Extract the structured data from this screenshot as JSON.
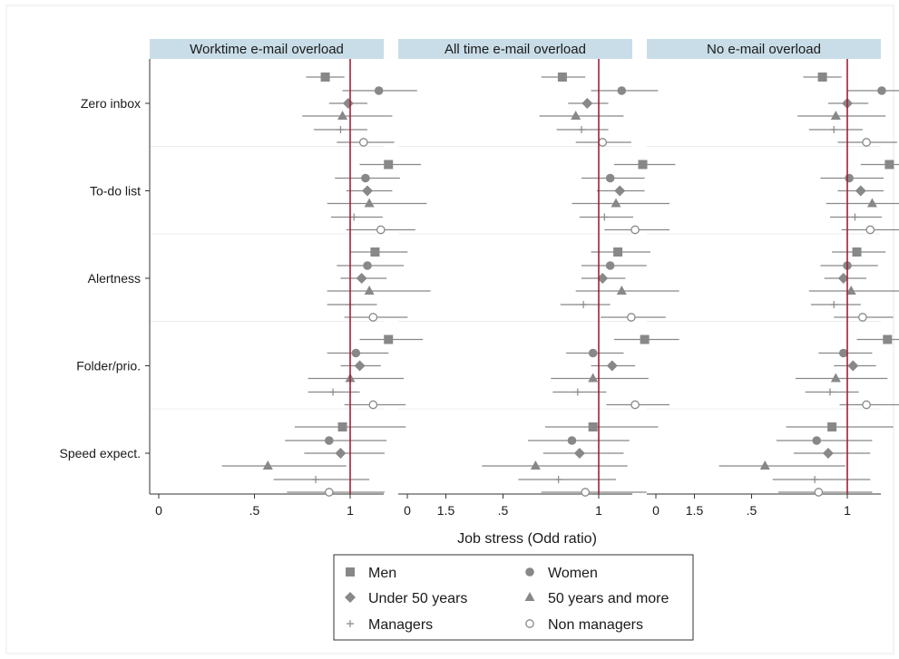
{
  "chart_data": {
    "type": "scatter",
    "subtype": "forest-plot",
    "xlabel": "Job stress  (Odd ratio)",
    "xlim": [
      -0.05,
      1.58
    ],
    "xticks": [
      0,
      0.5,
      1,
      1.5
    ],
    "xtick_labels": [
      "0",
      ".5",
      "1",
      "1.5"
    ],
    "reference_line": {
      "value": 1,
      "color": "#a0203a"
    },
    "point_color": "#888888",
    "outcomes": [
      "Zero inbox",
      "To-do list",
      "Alertness",
      "Folder/prio.",
      "Speed expect."
    ],
    "groups": [
      {
        "name": "Men",
        "marker": "square"
      },
      {
        "name": "Women",
        "marker": "circle"
      },
      {
        "name": "Under 50 years",
        "marker": "diamond"
      },
      {
        "name": "50 years and more",
        "marker": "triangle"
      },
      {
        "name": "Managers",
        "marker": "plus"
      },
      {
        "name": "Non managers",
        "marker": "hollow-circle"
      }
    ],
    "legend_position": "bottom-center",
    "panels": [
      {
        "title": "Worktime e-mail overload",
        "estimates": [
          [
            [
              0.87,
              0.77,
              0.97
            ],
            [
              1.15,
              0.96,
              1.35
            ],
            [
              0.99,
              0.89,
              1.09
            ],
            [
              0.96,
              0.75,
              1.22
            ],
            [
              0.95,
              0.81,
              1.09
            ],
            [
              1.07,
              0.93,
              1.23
            ]
          ],
          [
            [
              1.2,
              1.05,
              1.37
            ],
            [
              1.08,
              0.92,
              1.26
            ],
            [
              1.09,
              0.98,
              1.22
            ],
            [
              1.1,
              0.88,
              1.4
            ],
            [
              1.02,
              0.9,
              1.17
            ],
            [
              1.16,
              0.98,
              1.34
            ]
          ],
          [
            [
              1.13,
              1.0,
              1.3
            ],
            [
              1.09,
              0.93,
              1.28
            ],
            [
              1.06,
              0.95,
              1.19
            ],
            [
              1.1,
              0.88,
              1.42
            ],
            [
              1.0,
              0.88,
              1.14
            ],
            [
              1.12,
              0.97,
              1.3
            ]
          ],
          [
            [
              1.2,
              1.05,
              1.38
            ],
            [
              1.03,
              0.88,
              1.2
            ],
            [
              1.05,
              0.95,
              1.16
            ],
            [
              1.0,
              0.78,
              1.28
            ],
            [
              0.91,
              0.78,
              1.05
            ],
            [
              1.12,
              0.97,
              1.29
            ]
          ],
          [
            [
              0.96,
              0.71,
              1.29
            ],
            [
              0.89,
              0.66,
              1.19
            ],
            [
              0.95,
              0.76,
              1.18
            ],
            [
              0.57,
              0.33,
              0.98
            ],
            [
              0.82,
              0.6,
              1.1
            ],
            [
              0.89,
              0.67,
              1.18
            ]
          ]
        ]
      },
      {
        "title": "All time e-mail overload",
        "estimates": [
          [
            [
              0.81,
              0.7,
              0.93
            ],
            [
              1.12,
              0.96,
              1.31
            ],
            [
              0.94,
              0.84,
              1.05
            ],
            [
              0.88,
              0.69,
              1.13
            ],
            [
              0.91,
              0.78,
              1.05
            ],
            [
              1.02,
              0.88,
              1.17
            ]
          ],
          [
            [
              1.23,
              1.08,
              1.4
            ],
            [
              1.06,
              0.91,
              1.24
            ],
            [
              1.11,
              0.99,
              1.24
            ],
            [
              1.09,
              0.86,
              1.37
            ],
            [
              1.03,
              0.9,
              1.18
            ],
            [
              1.19,
              1.03,
              1.37
            ]
          ],
          [
            [
              1.1,
              0.96,
              1.27
            ],
            [
              1.06,
              0.91,
              1.25
            ],
            [
              1.02,
              0.91,
              1.14
            ],
            [
              1.12,
              0.88,
              1.42
            ],
            [
              0.92,
              0.8,
              1.06
            ],
            [
              1.17,
              1.01,
              1.35
            ]
          ],
          [
            [
              1.24,
              1.08,
              1.42
            ],
            [
              0.97,
              0.83,
              1.13
            ],
            [
              1.07,
              0.96,
              1.19
            ],
            [
              0.97,
              0.75,
              1.26
            ],
            [
              0.89,
              0.76,
              1.04
            ],
            [
              1.19,
              1.04,
              1.37
            ]
          ],
          [
            [
              0.97,
              0.72,
              1.31
            ],
            [
              0.86,
              0.63,
              1.16
            ],
            [
              0.9,
              0.71,
              1.13
            ],
            [
              0.67,
              0.39,
              1.15
            ],
            [
              0.79,
              0.58,
              1.09
            ],
            [
              0.93,
              0.7,
              1.25
            ]
          ]
        ]
      },
      {
        "title": "No e-mail overload",
        "estimates": [
          [
            [
              0.87,
              0.77,
              0.97
            ],
            [
              1.18,
              1.0,
              1.37
            ],
            [
              1.0,
              0.9,
              1.11
            ],
            [
              0.94,
              0.74,
              1.2
            ],
            [
              0.93,
              0.8,
              1.08
            ],
            [
              1.1,
              0.95,
              1.26
            ]
          ],
          [
            [
              1.22,
              1.07,
              1.38
            ],
            [
              1.01,
              0.86,
              1.19
            ],
            [
              1.07,
              0.95,
              1.19
            ],
            [
              1.13,
              0.89,
              1.42
            ],
            [
              1.04,
              0.91,
              1.18
            ],
            [
              1.12,
              0.97,
              1.3
            ]
          ],
          [
            [
              1.05,
              0.92,
              1.2
            ],
            [
              1.0,
              0.86,
              1.16
            ],
            [
              0.98,
              0.88,
              1.1
            ],
            [
              1.02,
              0.8,
              1.3
            ],
            [
              0.93,
              0.81,
              1.07
            ],
            [
              1.08,
              0.93,
              1.24
            ]
          ],
          [
            [
              1.21,
              1.05,
              1.38
            ],
            [
              0.98,
              0.85,
              1.13
            ],
            [
              1.03,
              0.93,
              1.15
            ],
            [
              0.94,
              0.73,
              1.21
            ],
            [
              0.91,
              0.78,
              1.06
            ],
            [
              1.1,
              0.96,
              1.27
            ]
          ],
          [
            [
              0.92,
              0.68,
              1.24
            ],
            [
              0.84,
              0.63,
              1.13
            ],
            [
              0.9,
              0.72,
              1.12
            ],
            [
              0.57,
              0.33,
              0.99
            ],
            [
              0.83,
              0.61,
              1.12
            ],
            [
              0.85,
              0.64,
              1.13
            ]
          ]
        ]
      }
    ]
  }
}
